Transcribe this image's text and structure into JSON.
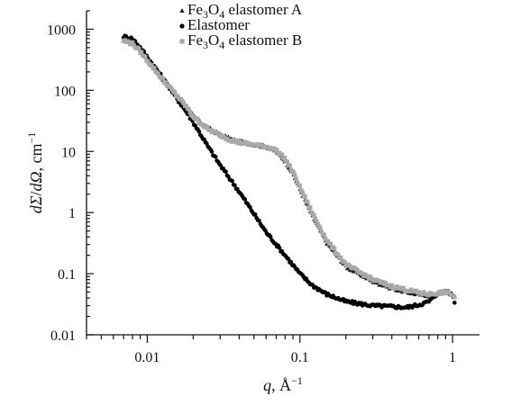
{
  "chart_data": {
    "type": "scatter",
    "xscale": "log",
    "yscale": "log",
    "xlim": [
      0.004,
      1.5
    ],
    "ylim": [
      0.01,
      2000
    ],
    "xticks": [
      {
        "value": 0.01,
        "label": "0.01"
      },
      {
        "value": 0.1,
        "label": "0.1"
      },
      {
        "value": 1,
        "label": "1"
      }
    ],
    "yticks": [
      {
        "value": 1000,
        "label": "1000"
      },
      {
        "value": 100,
        "label": "100"
      },
      {
        "value": 10,
        "label": "10"
      },
      {
        "value": 1,
        "label": "1"
      },
      {
        "value": 0.1,
        "label": "0.1"
      },
      {
        "value": 0.01,
        "label": "0.01"
      }
    ],
    "xlabel": {
      "var": "q",
      "rest": ", Å",
      "sup": "−1"
    },
    "ylabel": {
      "num": "dΣ",
      "den": "dΩ",
      "unit": ", cm",
      "sup": "−1"
    },
    "grid": false,
    "legend_position": "top-center",
    "legend": [
      {
        "series": 0,
        "parts": [
          {
            "t": "Fe"
          },
          {
            "t": "3",
            "sub": true
          },
          {
            "t": "O"
          },
          {
            "t": "4",
            "sub": true
          },
          {
            "t": " elastomer A"
          }
        ]
      },
      {
        "series": 1,
        "parts": [
          {
            "t": "Elastomer"
          }
        ]
      },
      {
        "series": 2,
        "parts": [
          {
            "t": "Fe"
          },
          {
            "t": "3",
            "sub": true
          },
          {
            "t": "O"
          },
          {
            "t": "4",
            "sub": true
          },
          {
            "t": " elastomer B"
          }
        ]
      }
    ],
    "series": [
      {
        "name": "Fe3O4 elastomer A",
        "marker": "triangle",
        "color": "#1a1a1a",
        "x": [
          0.007,
          0.008,
          0.009,
          0.01,
          0.012,
          0.015,
          0.018,
          0.02,
          0.025,
          0.03,
          0.035,
          0.04,
          0.05,
          0.06,
          0.07,
          0.08,
          0.09,
          0.1,
          0.12,
          0.15,
          0.2,
          0.3,
          0.4,
          0.5,
          0.6,
          0.7,
          0.8,
          0.9,
          1.0,
          1.05
        ],
        "y": [
          720,
          640,
          460,
          320,
          180,
          95,
          55,
          38,
          24,
          19,
          16,
          14.5,
          13,
          12,
          10,
          7,
          4.3,
          2.4,
          0.9,
          0.32,
          0.13,
          0.075,
          0.058,
          0.05,
          0.046,
          0.044,
          0.047,
          0.05,
          0.046,
          0.04
        ]
      },
      {
        "name": "Elastomer",
        "marker": "circle",
        "color": "#000000",
        "x": [
          0.007,
          0.008,
          0.009,
          0.01,
          0.012,
          0.015,
          0.018,
          0.02,
          0.025,
          0.03,
          0.04,
          0.05,
          0.06,
          0.07,
          0.08,
          0.1,
          0.12,
          0.15,
          0.2,
          0.25,
          0.3,
          0.4,
          0.5,
          0.6,
          0.7,
          0.8,
          0.9,
          1.0,
          1.05
        ],
        "y": [
          760,
          700,
          500,
          350,
          190,
          85,
          45,
          30,
          12,
          6,
          2.2,
          0.95,
          0.48,
          0.3,
          0.2,
          0.1,
          0.065,
          0.046,
          0.035,
          0.032,
          0.03,
          0.029,
          0.028,
          0.031,
          0.035,
          0.048,
          0.052,
          0.045,
          0.03
        ]
      },
      {
        "name": "Fe3O4 elastomer B",
        "marker": "square",
        "color": "#a8a8a8",
        "x": [
          0.007,
          0.008,
          0.009,
          0.01,
          0.012,
          0.015,
          0.018,
          0.02,
          0.025,
          0.03,
          0.035,
          0.04,
          0.05,
          0.06,
          0.07,
          0.08,
          0.09,
          0.1,
          0.12,
          0.15,
          0.2,
          0.3,
          0.4,
          0.5,
          0.6,
          0.7,
          0.8,
          0.9,
          1.0,
          1.05
        ],
        "y": [
          650,
          580,
          430,
          310,
          175,
          92,
          54,
          37,
          23,
          18.5,
          15.5,
          14,
          12.8,
          12,
          10.5,
          7.5,
          4.6,
          2.6,
          1.0,
          0.35,
          0.14,
          0.08,
          0.062,
          0.054,
          0.049,
          0.046,
          0.048,
          0.05,
          0.045,
          0.038
        ]
      }
    ]
  }
}
